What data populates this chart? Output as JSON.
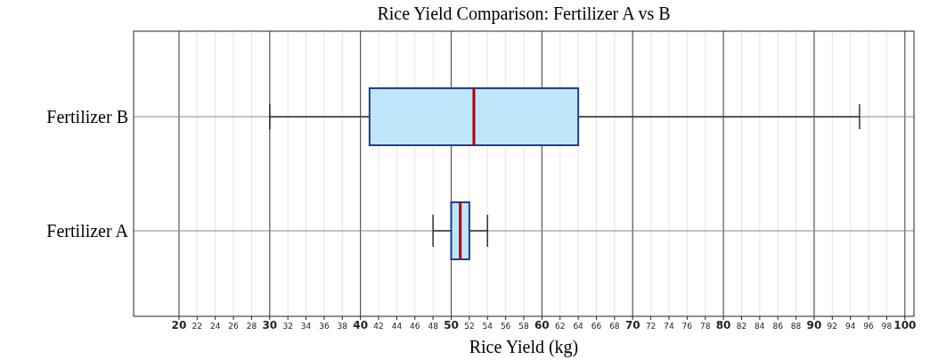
{
  "chart_data": {
    "type": "box",
    "title": "Rice Yield Comparison: Fertilizer A vs B",
    "xlabel": "Rice Yield (kg)",
    "orientation": "horizontal",
    "categories": [
      "Fertilizer B",
      "Fertilizer A"
    ],
    "color": "#bfe6fb",
    "boxes": [
      {
        "low": 30,
        "q1": 41,
        "median": 52.5,
        "q3": 64,
        "high": 95
      },
      {
        "low": 48,
        "q1": 50,
        "median": 51,
        "q3": 52,
        "high": 54
      }
    ],
    "xlim": [
      15,
      101
    ],
    "xticks": [
      20,
      22,
      24,
      26,
      28,
      30,
      32,
      34,
      36,
      38,
      40,
      42,
      44,
      46,
      48,
      50,
      52,
      54,
      56,
      58,
      60,
      62,
      64,
      66,
      68,
      70,
      72,
      74,
      76,
      78,
      80,
      82,
      84,
      86,
      88,
      90,
      92,
      94,
      96,
      98,
      100
    ],
    "grid": true
  }
}
